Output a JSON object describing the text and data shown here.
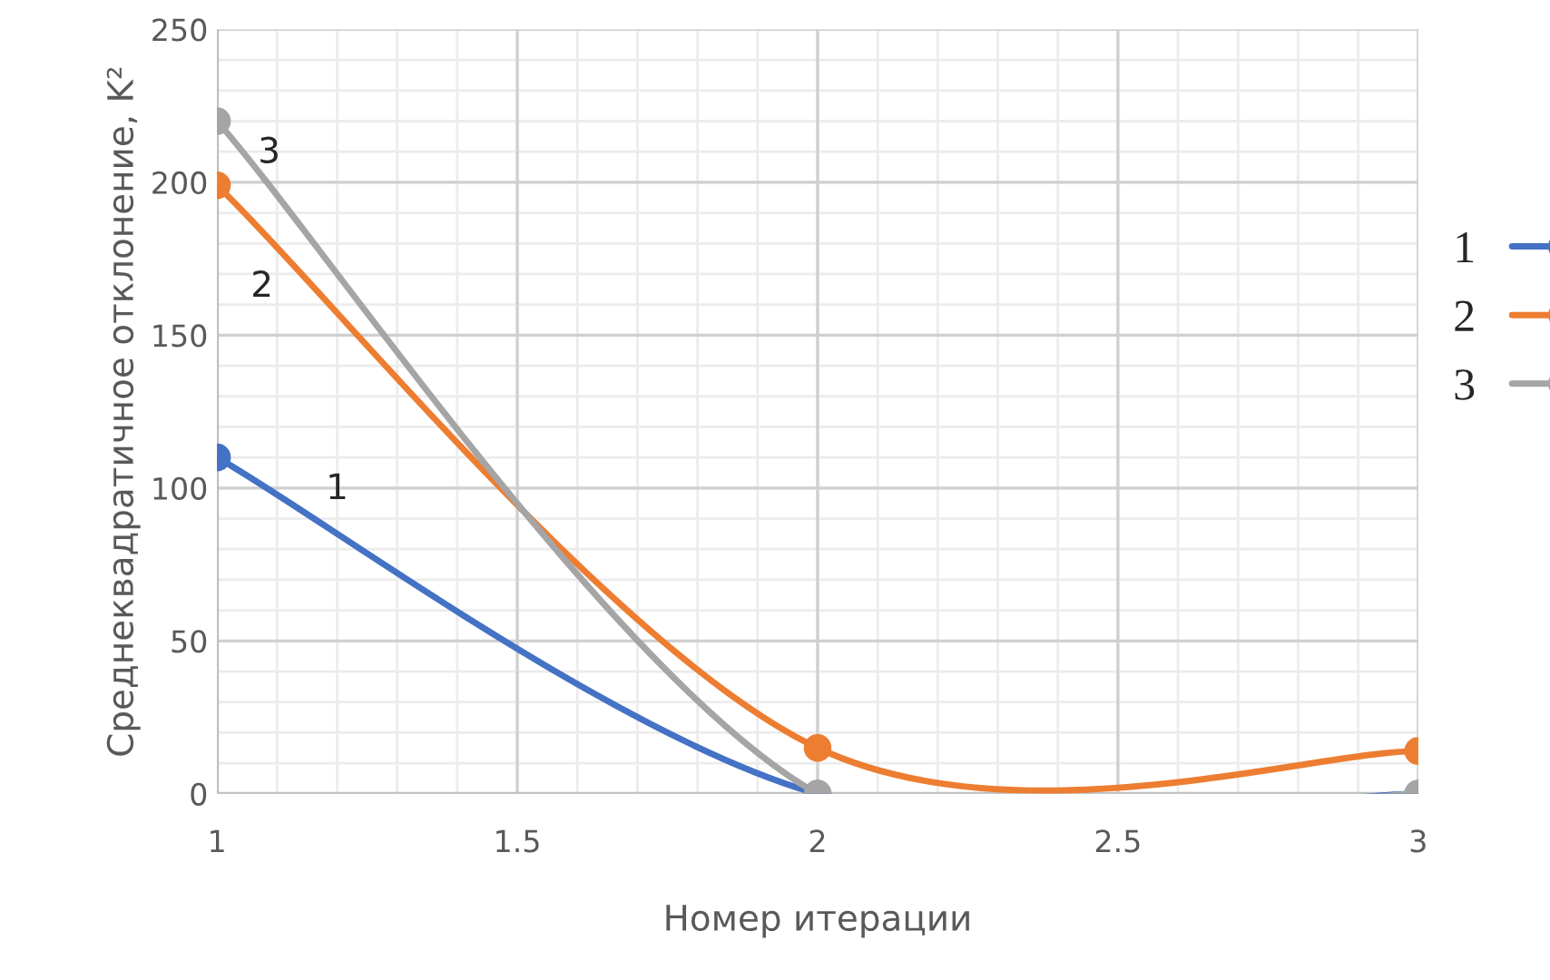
{
  "chart_data": {
    "type": "line",
    "xlabel": "Номер итерации",
    "ylabel": "Среднеквадратичное отклонение, K²",
    "x": [
      1,
      2,
      3
    ],
    "series": [
      {
        "name": "1",
        "color": "#4472c4",
        "values": [
          110,
          0,
          0
        ]
      },
      {
        "name": "2",
        "color": "#ed7d31",
        "values": [
          199,
          15,
          14
        ]
      },
      {
        "name": "3",
        "color": "#a5a5a5",
        "values": [
          220,
          0,
          0
        ]
      }
    ],
    "xlim": [
      1,
      3
    ],
    "xticks": [
      1,
      1.5,
      2,
      2.5,
      3
    ],
    "ylim": [
      0,
      250
    ],
    "yticks": [
      0,
      50,
      100,
      150,
      200,
      250
    ],
    "annotations": [
      "1",
      "2",
      "3"
    ],
    "grid": true,
    "legend": "right",
    "marker": "circle",
    "line_style": "solid"
  }
}
